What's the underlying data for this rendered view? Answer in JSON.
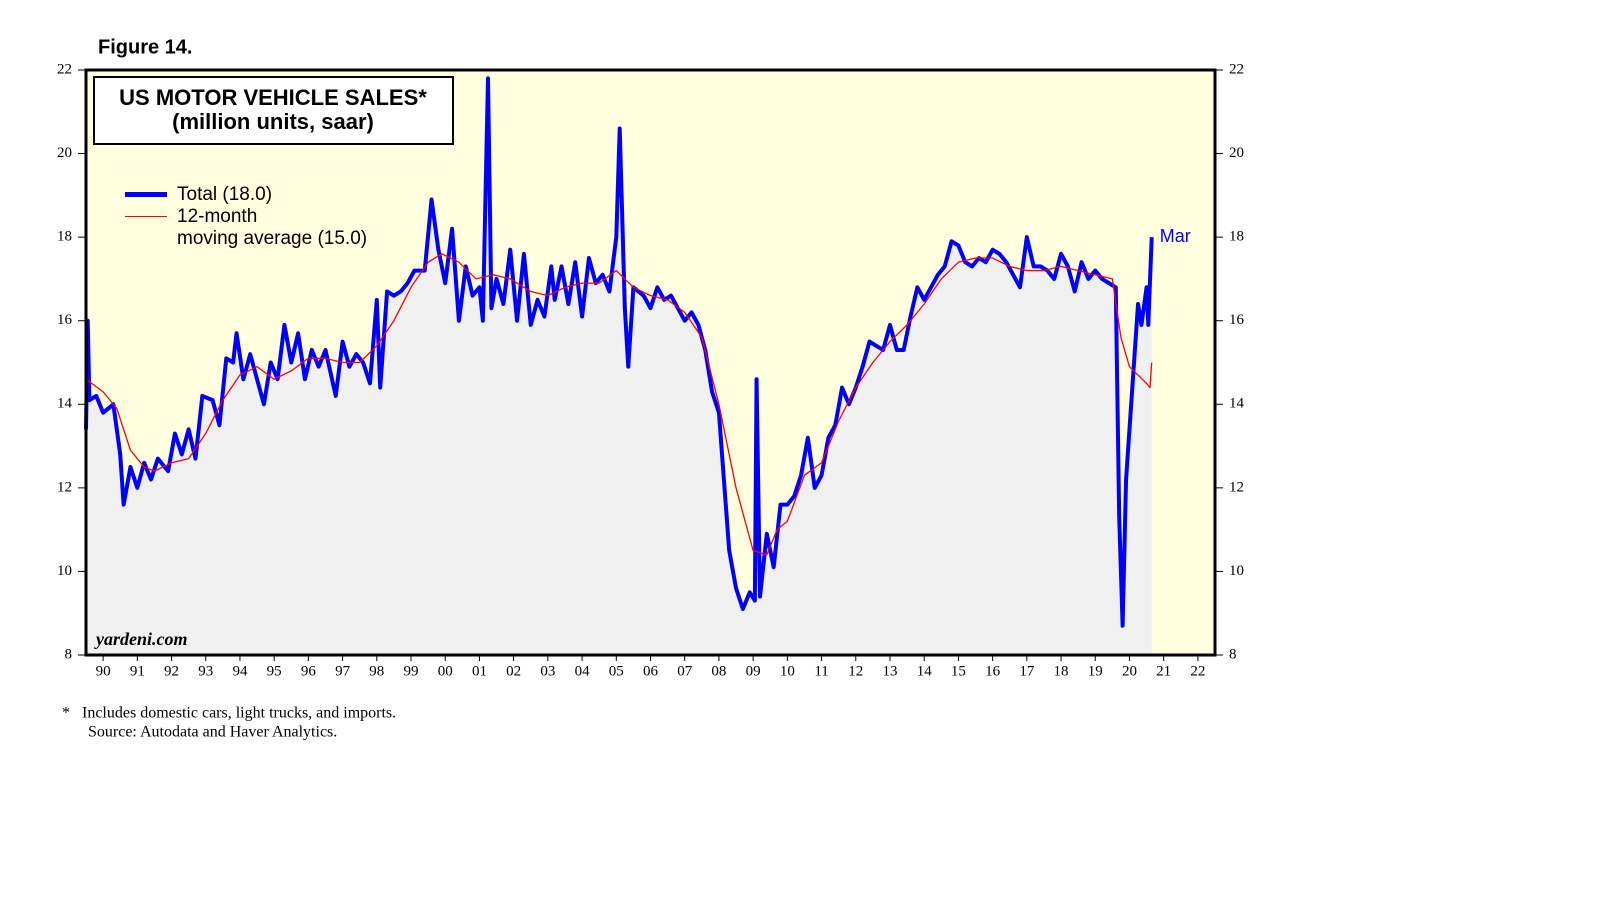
{
  "chart_data": {
    "type": "line",
    "figure_label": "Figure 14.",
    "title": "US MOTOR VEHICLE SALES*",
    "subtitle": "(million units, saar)",
    "watermark": "yardeni.com",
    "annotation": "Mar",
    "footnote": "*   Includes domestic cars, light trucks, and imports.",
    "source": "Source: Autodata and Haver Analytics.",
    "xlim": [
      1990,
      2023
    ],
    "ylim": [
      8,
      22
    ],
    "yticks": [
      8,
      10,
      12,
      14,
      16,
      18,
      20,
      22
    ],
    "xticks": [
      {
        "value": 1990.5,
        "label": "90"
      },
      {
        "value": 1991.5,
        "label": "91"
      },
      {
        "value": 1992.5,
        "label": "92"
      },
      {
        "value": 1993.5,
        "label": "93"
      },
      {
        "value": 1994.5,
        "label": "94"
      },
      {
        "value": 1995.5,
        "label": "95"
      },
      {
        "value": 1996.5,
        "label": "96"
      },
      {
        "value": 1997.5,
        "label": "97"
      },
      {
        "value": 1998.5,
        "label": "98"
      },
      {
        "value": 1999.5,
        "label": "99"
      },
      {
        "value": 2000.5,
        "label": "00"
      },
      {
        "value": 2001.5,
        "label": "01"
      },
      {
        "value": 2002.5,
        "label": "02"
      },
      {
        "value": 2003.5,
        "label": "03"
      },
      {
        "value": 2004.5,
        "label": "04"
      },
      {
        "value": 2005.5,
        "label": "05"
      },
      {
        "value": 2006.5,
        "label": "06"
      },
      {
        "value": 2007.5,
        "label": "07"
      },
      {
        "value": 2008.5,
        "label": "08"
      },
      {
        "value": 2009.5,
        "label": "09"
      },
      {
        "value": 2010.5,
        "label": "10"
      },
      {
        "value": 2011.5,
        "label": "11"
      },
      {
        "value": 2012.5,
        "label": "12"
      },
      {
        "value": 2013.5,
        "label": "13"
      },
      {
        "value": 2014.5,
        "label": "14"
      },
      {
        "value": 2015.5,
        "label": "15"
      },
      {
        "value": 2016.5,
        "label": "16"
      },
      {
        "value": 2017.5,
        "label": "17"
      },
      {
        "value": 2018.5,
        "label": "18"
      },
      {
        "value": 2019.5,
        "label": "19"
      },
      {
        "value": 2020.5,
        "label": "20"
      },
      {
        "value": 2021.5,
        "label": "21"
      },
      {
        "value": 2022.5,
        "label": "22"
      }
    ],
    "background_color": "#ffffe0",
    "area_color": "#f0f0f0",
    "series": [
      {
        "name": "Total (18.0)",
        "color": "#0000ff",
        "x": [
          1990.0,
          1990.05,
          1990.1,
          1990.3,
          1990.5,
          1990.8,
          1991.0,
          1991.1,
          1991.3,
          1991.5,
          1991.7,
          1991.9,
          1992.1,
          1992.4,
          1992.6,
          1992.8,
          1993.0,
          1993.2,
          1993.4,
          1993.7,
          1993.9,
          1994.1,
          1994.3,
          1994.4,
          1994.6,
          1994.8,
          1995.0,
          1995.2,
          1995.4,
          1995.6,
          1995.8,
          1996.0,
          1996.2,
          1996.4,
          1996.6,
          1996.8,
          1997.0,
          1997.3,
          1997.5,
          1997.7,
          1997.9,
          1998.1,
          1998.3,
          1998.5,
          1998.6,
          1998.8,
          1999.0,
          1999.2,
          1999.4,
          1999.6,
          1999.9,
          2000.1,
          2000.3,
          2000.5,
          2000.7,
          2000.9,
          2001.1,
          2001.3,
          2001.5,
          2001.6,
          2001.75,
          2001.85,
          2002.0,
          2002.2,
          2002.4,
          2002.6,
          2002.8,
          2003.0,
          2003.2,
          2003.4,
          2003.6,
          2003.7,
          2003.9,
          2004.1,
          2004.3,
          2004.5,
          2004.7,
          2004.9,
          2005.1,
          2005.3,
          2005.5,
          2005.6,
          2005.75,
          2005.85,
          2006.0,
          2006.3,
          2006.5,
          2006.7,
          2006.9,
          2007.1,
          2007.3,
          2007.5,
          2007.7,
          2007.9,
          2008.1,
          2008.3,
          2008.5,
          2008.6,
          2008.8,
          2009.0,
          2009.2,
          2009.4,
          2009.55,
          2009.6,
          2009.7,
          2009.9,
          2010.1,
          2010.3,
          2010.5,
          2010.7,
          2010.9,
          2011.1,
          2011.3,
          2011.5,
          2011.7,
          2011.9,
          2012.1,
          2012.3,
          2012.5,
          2012.7,
          2012.9,
          2013.1,
          2013.3,
          2013.5,
          2013.7,
          2013.9,
          2014.1,
          2014.3,
          2014.5,
          2014.7,
          2014.9,
          2015.1,
          2015.3,
          2015.5,
          2015.7,
          2015.9,
          2016.1,
          2016.3,
          2016.5,
          2016.7,
          2016.9,
          2017.1,
          2017.3,
          2017.5,
          2017.7,
          2017.9,
          2018.1,
          2018.3,
          2018.5,
          2018.7,
          2018.9,
          2019.1,
          2019.3,
          2019.5,
          2019.7,
          2019.9,
          2020.1,
          2020.2,
          2020.3,
          2020.4,
          2020.6,
          2020.75,
          2020.85,
          2021.0,
          2021.05,
          2021.15
        ],
        "values": [
          13.4,
          16.0,
          14.1,
          14.2,
          13.8,
          14.0,
          12.8,
          11.6,
          12.5,
          12.0,
          12.6,
          12.2,
          12.7,
          12.4,
          13.3,
          12.8,
          13.4,
          12.7,
          14.2,
          14.1,
          13.5,
          15.1,
          15.0,
          15.7,
          14.6,
          15.2,
          14.6,
          14.0,
          15.0,
          14.6,
          15.9,
          15.0,
          15.7,
          14.6,
          15.3,
          14.9,
          15.3,
          14.2,
          15.5,
          14.9,
          15.2,
          15.0,
          14.5,
          16.5,
          14.4,
          16.7,
          16.6,
          16.7,
          16.9,
          17.2,
          17.2,
          18.9,
          17.7,
          16.9,
          18.2,
          16.0,
          17.3,
          16.6,
          16.8,
          16.0,
          21.8,
          16.3,
          17.0,
          16.4,
          17.7,
          16.0,
          17.6,
          15.9,
          16.5,
          16.1,
          17.3,
          16.5,
          17.3,
          16.4,
          17.4,
          16.1,
          17.5,
          16.9,
          17.1,
          16.7,
          18.0,
          20.6,
          16.3,
          14.9,
          16.8,
          16.6,
          16.3,
          16.8,
          16.5,
          16.6,
          16.3,
          16.0,
          16.2,
          15.9,
          15.3,
          14.3,
          13.8,
          12.7,
          10.5,
          9.6,
          9.1,
          9.5,
          9.3,
          14.6,
          9.4,
          10.9,
          10.1,
          11.6,
          11.6,
          11.8,
          12.3,
          13.2,
          12.0,
          12.3,
          13.2,
          13.5,
          14.4,
          14.0,
          14.4,
          14.9,
          15.5,
          15.4,
          15.3,
          15.9,
          15.3,
          15.3,
          16.1,
          16.8,
          16.5,
          16.8,
          17.1,
          17.3,
          17.9,
          17.8,
          17.4,
          17.3,
          17.5,
          17.4,
          17.7,
          17.6,
          17.4,
          17.1,
          16.8,
          18.0,
          17.3,
          17.3,
          17.2,
          17.0,
          17.6,
          17.3,
          16.7,
          17.4,
          17.0,
          17.2,
          17.0,
          16.9,
          16.8,
          11.3,
          8.7,
          12.2,
          14.6,
          16.4,
          15.9,
          16.8,
          15.9,
          18.0
        ]
      },
      {
        "name": "12-month\nmoving average (15.0)",
        "color": "#ff0000",
        "x": [
          1990.0,
          1990.5,
          1990.9,
          1991.3,
          1991.7,
          1992.0,
          1992.5,
          1993.0,
          1993.5,
          1994.0,
          1994.5,
          1995.0,
          1995.5,
          1996.0,
          1996.5,
          1997.0,
          1997.5,
          1998.0,
          1998.5,
          1999.0,
          1999.5,
          2000.0,
          2000.4,
          2000.9,
          2001.4,
          2001.9,
          2002.4,
          2003.0,
          2003.5,
          2004.0,
          2004.5,
          2005.0,
          2005.5,
          2006.0,
          2006.5,
          2007.0,
          2007.5,
          2008.0,
          2008.5,
          2009.0,
          2009.5,
          2009.9,
          2010.2,
          2010.5,
          2011.0,
          2011.5,
          2012.0,
          2012.5,
          2013.0,
          2013.5,
          2014.0,
          2014.5,
          2015.0,
          2015.5,
          2016.0,
          2016.5,
          2017.0,
          2017.5,
          2018.0,
          2018.5,
          2019.0,
          2019.5,
          2020.0,
          2020.25,
          2020.5,
          2020.75,
          2021.0,
          2021.1,
          2021.15
        ],
        "values": [
          14.6,
          14.3,
          13.9,
          12.9,
          12.5,
          12.4,
          12.6,
          12.7,
          13.3,
          14.1,
          14.7,
          14.9,
          14.6,
          14.8,
          15.1,
          15.1,
          15.0,
          15.0,
          15.4,
          16.0,
          16.8,
          17.4,
          17.6,
          17.4,
          17.0,
          17.1,
          17.0,
          16.7,
          16.6,
          16.8,
          16.9,
          16.9,
          17.2,
          16.8,
          16.6,
          16.5,
          16.2,
          15.6,
          14.0,
          12.0,
          10.5,
          10.4,
          11.0,
          11.2,
          12.3,
          12.6,
          13.6,
          14.4,
          15.0,
          15.5,
          15.9,
          16.4,
          17.0,
          17.4,
          17.5,
          17.5,
          17.3,
          17.2,
          17.2,
          17.3,
          17.2,
          17.1,
          17.0,
          15.6,
          14.9,
          14.7,
          14.5,
          14.4,
          15.0
        ]
      }
    ]
  }
}
